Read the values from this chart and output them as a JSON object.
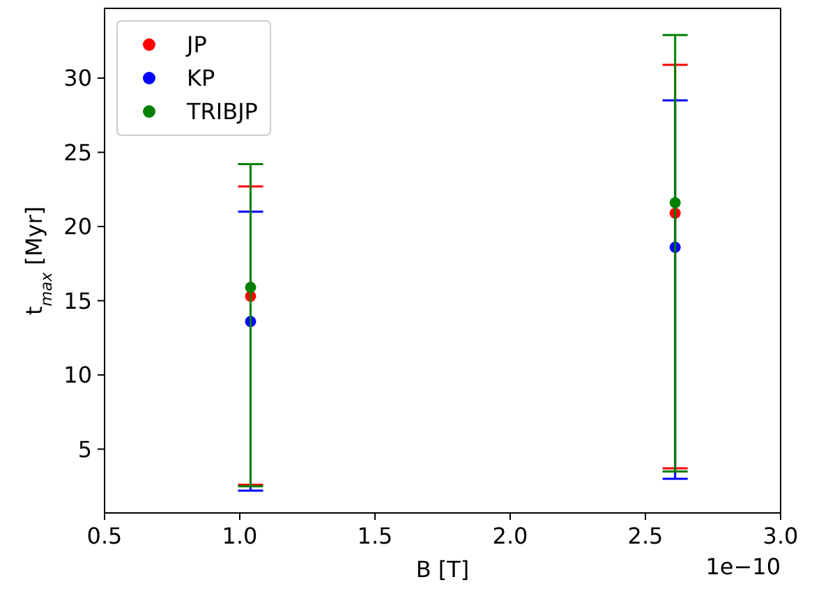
{
  "chart_data": {
    "type": "scatter",
    "xlabel": "B [T]",
    "ylabel": "t$_{max}$ [Myr]",
    "annotations": [
      "1e−10"
    ],
    "x": [
      1.04,
      2.61
    ],
    "series": [
      {
        "name": "JP",
        "color": "#ff0000",
        "values": [
          15.3,
          20.9
        ],
        "errors": [
          [
            2.6,
            22.7
          ],
          [
            3.7,
            30.9
          ]
        ]
      },
      {
        "name": "KP",
        "color": "#0000ff",
        "values": [
          13.6,
          18.6
        ],
        "errors": [
          [
            2.2,
            21.0
          ],
          [
            3.0,
            28.5
          ]
        ]
      },
      {
        "name": "TRIBJP",
        "color": "#008000",
        "values": [
          15.9,
          21.6
        ],
        "errors": [
          [
            2.5,
            24.2
          ],
          [
            3.5,
            32.9
          ]
        ]
      }
    ],
    "xlim": [
      0.5,
      3.0
    ],
    "xticks": [
      {
        "value": 0.5,
        "label": "0.5"
      },
      {
        "value": 1.0,
        "label": "1.0"
      },
      {
        "value": 1.5,
        "label": "1.5"
      },
      {
        "value": 2.0,
        "label": "2.0"
      },
      {
        "value": 2.5,
        "label": "2.5"
      },
      {
        "value": 3.0,
        "label": "3.0"
      }
    ],
    "ylim": [
      0.7,
      34.7
    ],
    "yticks": [
      5,
      10,
      15,
      20,
      25,
      30
    ],
    "marker": "circle",
    "legend": "top left",
    "grid": false
  }
}
